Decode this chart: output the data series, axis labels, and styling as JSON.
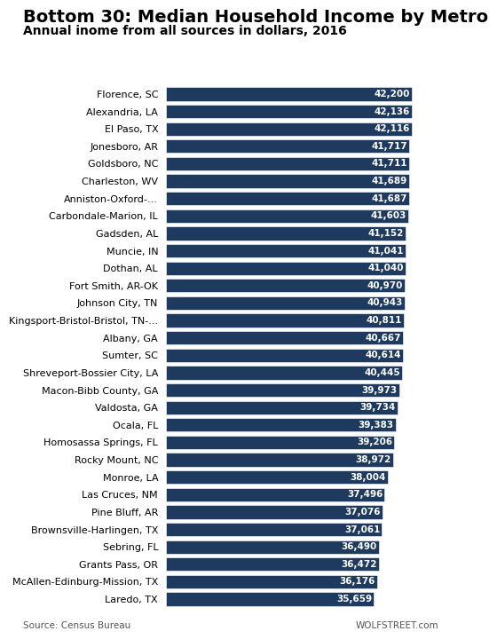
{
  "title": "Bottom 30: Median Household Income by Metro",
  "subtitle": "Annual inome from all sources in dollars, 2016",
  "footer_left": "Source: Census Bureau",
  "footer_right": "WOLFSTREET.com",
  "bar_color": "#1e3a5f",
  "text_color_inside": "#ffffff",
  "categories": [
    "Florence, SC",
    "Alexandria, LA",
    "El Paso, TX",
    "Jonesboro, AR",
    "Goldsboro, NC",
    "Charleston, WV",
    "Anniston-Oxford-...",
    "Carbondale-Marion, IL",
    "Gadsden, AL",
    "Muncie, IN",
    "Dothan, AL",
    "Fort Smith, AR-OK",
    "Johnson City, TN",
    "Kingsport-Bristol-Bristol, TN-...",
    "Albany, GA",
    "Sumter, SC",
    "Shreveport-Bossier City, LA",
    "Macon-Bibb County, GA",
    "Valdosta, GA",
    "Ocala, FL",
    "Homosassa Springs, FL",
    "Rocky Mount, NC",
    "Monroe, LA",
    "Las Cruces, NM",
    "Pine Bluff, AR",
    "Brownsville-Harlingen, TX",
    "Sebring, FL",
    "Grants Pass, OR",
    "McAllen-Edinburg-Mission, TX",
    "Laredo, TX"
  ],
  "values": [
    42200,
    42136,
    42116,
    41717,
    41711,
    41689,
    41687,
    41603,
    41152,
    41041,
    41040,
    40970,
    40943,
    40811,
    40667,
    40614,
    40445,
    39973,
    39734,
    39383,
    39206,
    38972,
    38004,
    37496,
    37076,
    37061,
    36490,
    36472,
    36176,
    35659
  ],
  "xlim": [
    0,
    46000
  ],
  "background_color": "#ffffff",
  "title_fontsize": 14,
  "subtitle_fontsize": 10,
  "bar_label_fontsize": 7.5,
  "category_fontsize": 8,
  "footer_fontsize": 7.5
}
